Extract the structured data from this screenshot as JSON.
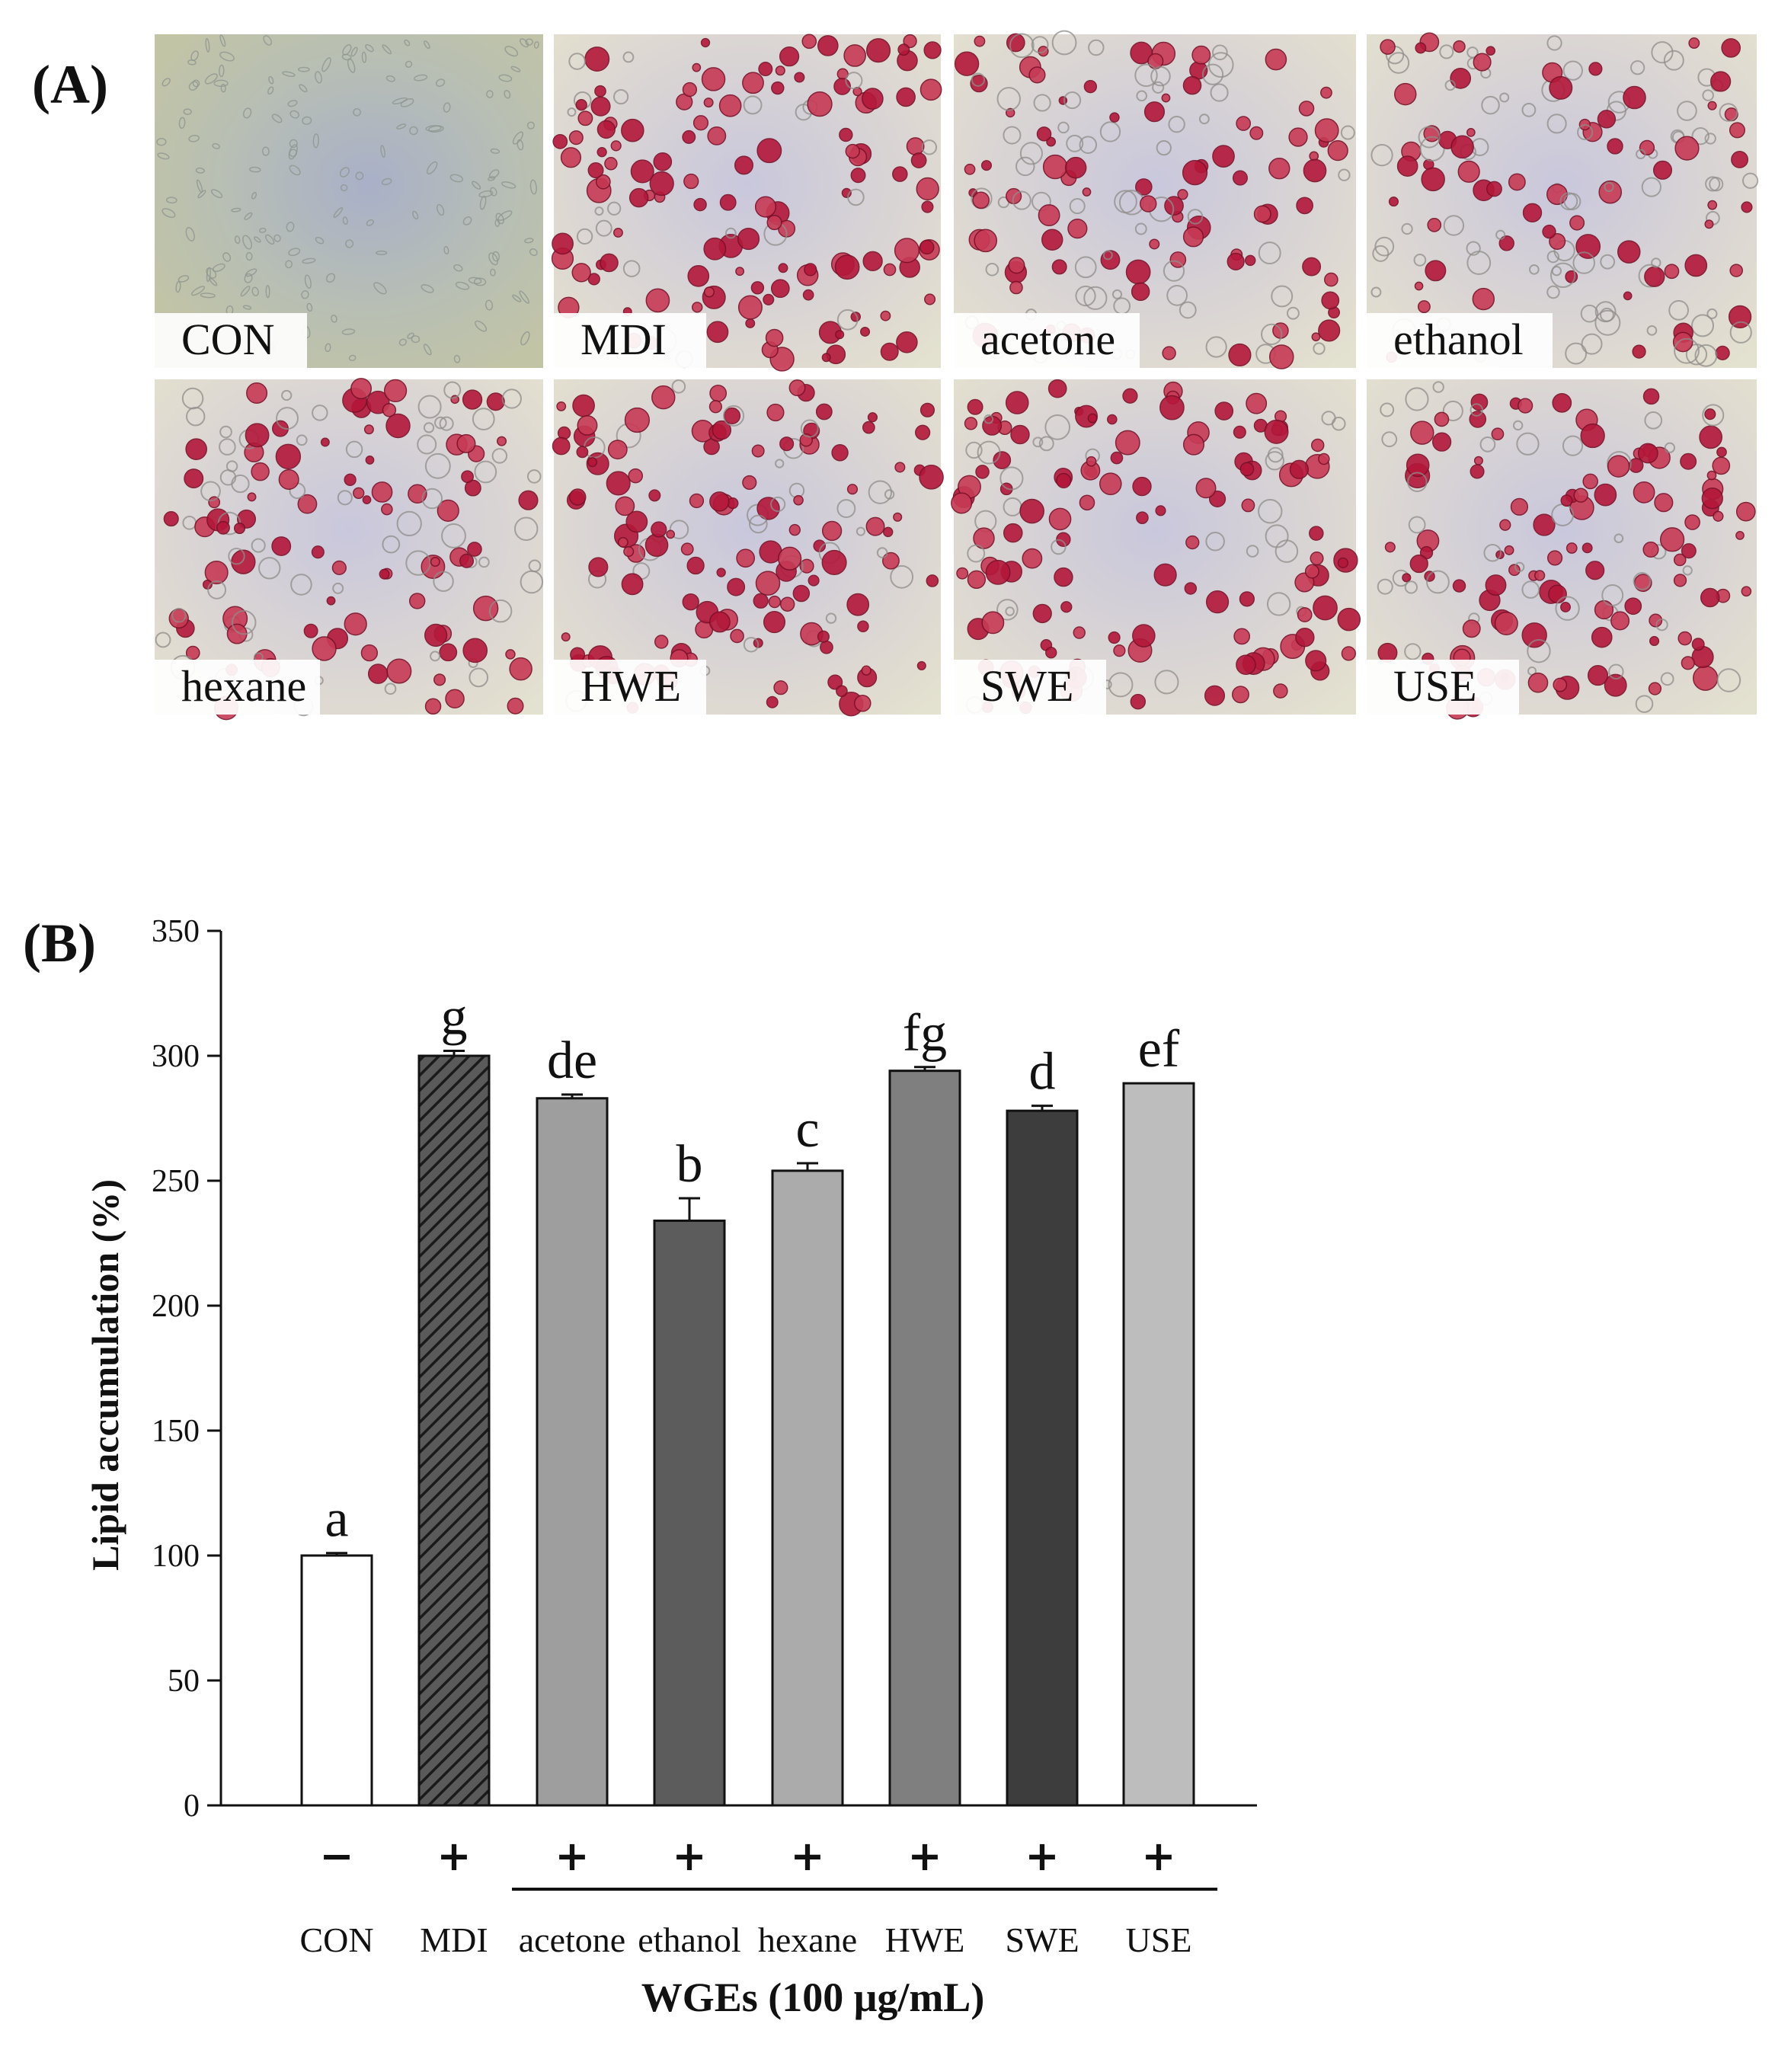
{
  "panel_a": {
    "letter": "(A)",
    "tiles": [
      {
        "label": "CON",
        "stain": 0.0
      },
      {
        "label": "MDI",
        "stain": 0.85
      },
      {
        "label": "acetone",
        "stain": 0.65
      },
      {
        "label": "ethanol",
        "stain": 0.5
      },
      {
        "label": "hexane",
        "stain": 0.6
      },
      {
        "label": "HWE",
        "stain": 0.8
      },
      {
        "label": "SWE",
        "stain": 0.8
      },
      {
        "label": "USE",
        "stain": 0.7
      }
    ]
  },
  "chart_data": {
    "type": "bar",
    "panel_letter": "(B)",
    "categories": [
      "CON",
      "MDI",
      "acetone",
      "ethanol",
      "hexane",
      "HWE",
      "SWE",
      "USE"
    ],
    "values": [
      100,
      300,
      283,
      234,
      254,
      294,
      278,
      289
    ],
    "errors": [
      1,
      2,
      1.5,
      9,
      3,
      1.5,
      2,
      0
    ],
    "significance": [
      "a",
      "g",
      "de",
      "b",
      "c",
      "fg",
      "d",
      "ef"
    ],
    "mdi_treatment": [
      "−",
      "+",
      "+",
      "+",
      "+",
      "+",
      "+",
      "+"
    ],
    "bar_colors": [
      "#ffffff",
      "#3a3a3a",
      "#9e9e9e",
      "#5c5c5c",
      "#ababab",
      "#7f7f7f",
      "#3d3d3d",
      "#bdbdbd"
    ],
    "hatched": [
      "MDI"
    ],
    "ylabel": "Lipid accumulation (%)",
    "xlabel": "WGEs (100 μg/mL)",
    "ylim": [
      0,
      350
    ],
    "yticks": [
      0,
      50,
      100,
      150,
      200,
      250,
      300,
      350
    ],
    "grid": false,
    "legend": "none"
  }
}
